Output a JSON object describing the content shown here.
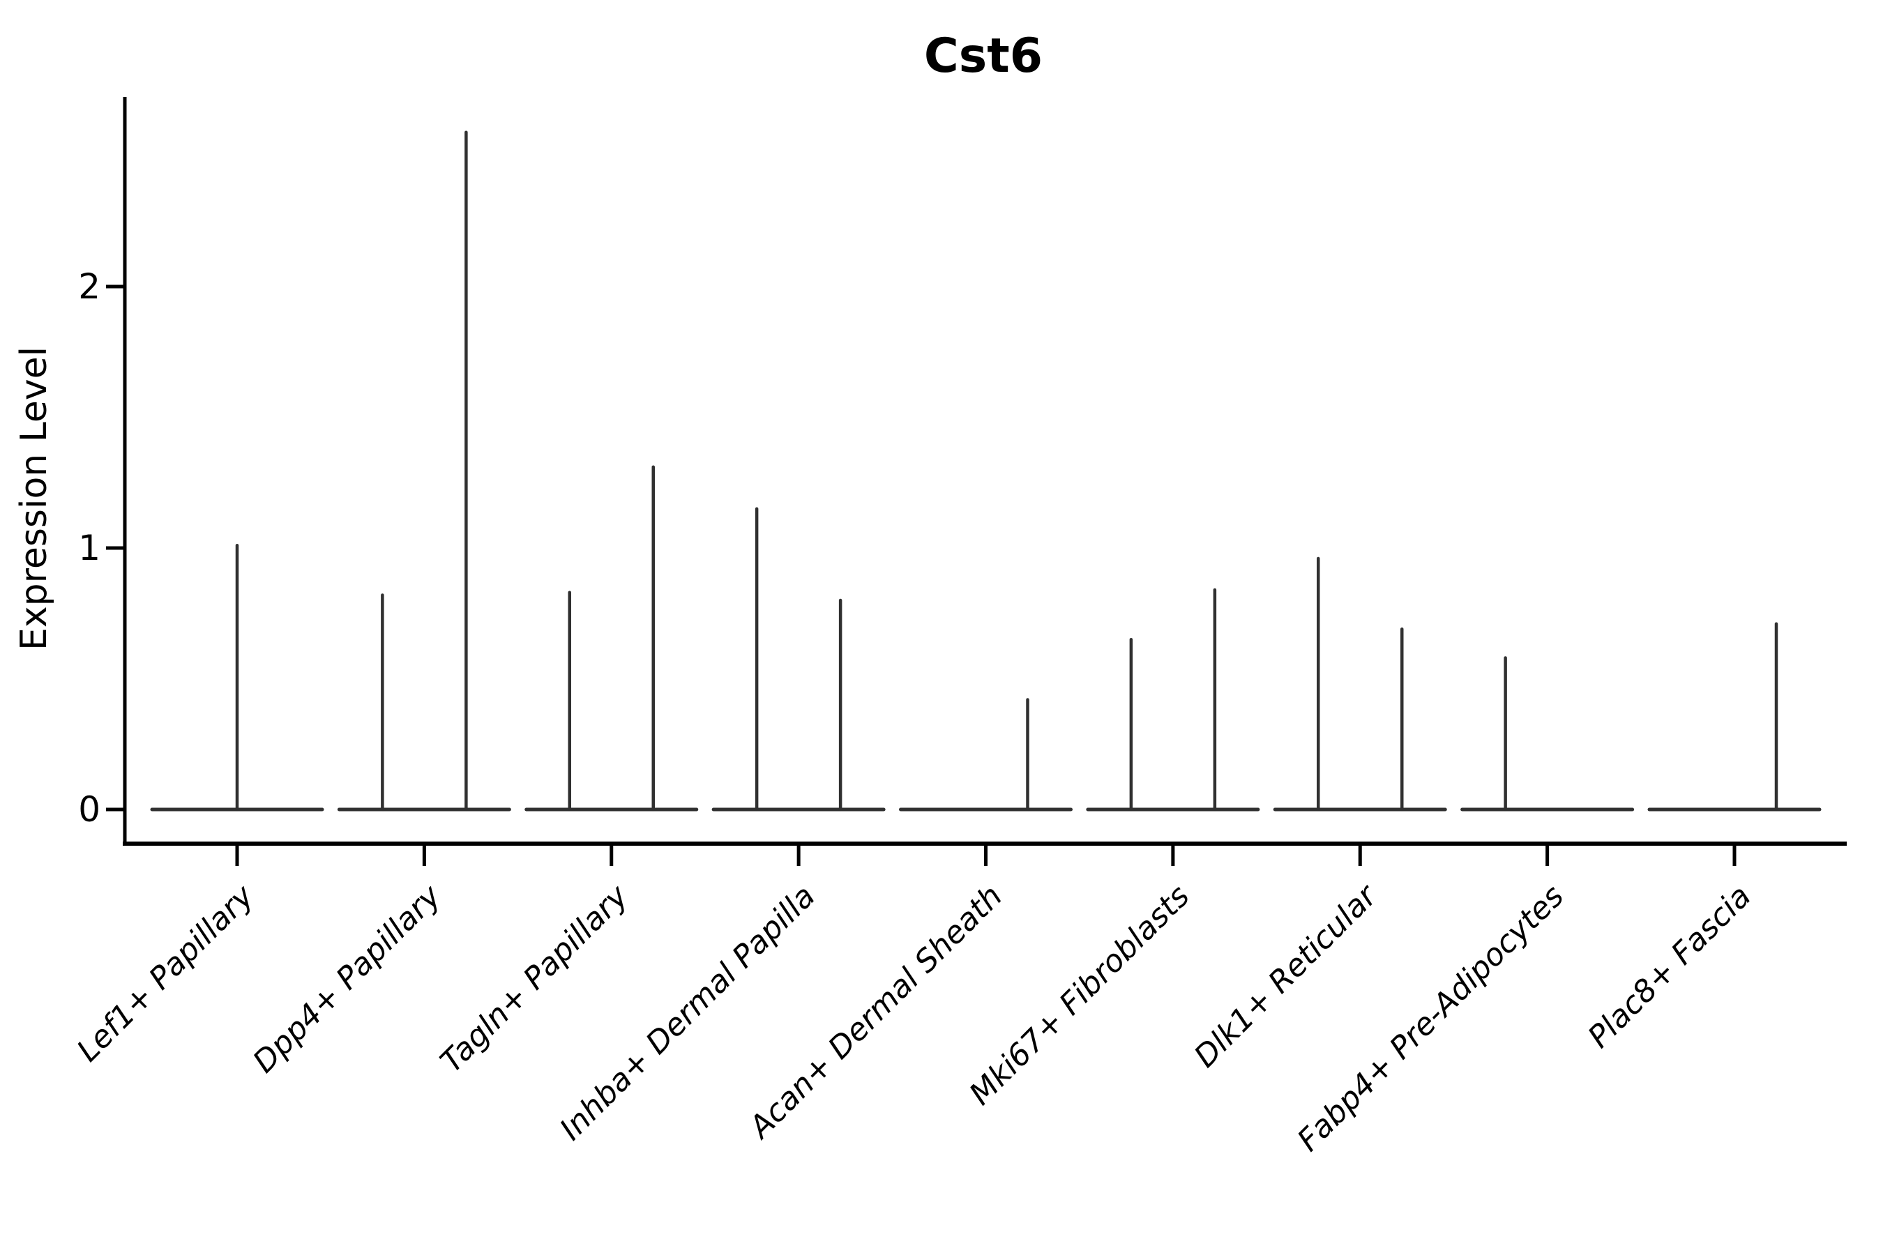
{
  "page": {
    "background": "#ffffff"
  },
  "chart_data": {
    "type": "violin",
    "title": "Cst6",
    "ylabel": "Expression Level",
    "xlabel": "",
    "yticks": [
      "0",
      "1",
      "2"
    ],
    "ylim": [
      -0.13,
      2.73
    ],
    "grid": false,
    "legend": "none",
    "note": "Single-cell expression violin plot. Nearly all density sits at 0 (wide flat base per category); thin vertical tails reach each sub-violin's maximum expression value listed in spikes[].max. 'side' gives the tail position within the category (left/center/right).",
    "categories": [
      "Lef1+ Papillary",
      "Dpp4+ Papillary",
      "Tagln+ Papillary",
      "Inhba+ Dermal Papilla",
      "Acan+ Dermal Sheath",
      "Mki67+ Fibroblasts",
      "Dlk1+ Reticular",
      "Fabp4+ Pre-Adipocytes",
      "Plac8+ Fascia"
    ],
    "violins": [
      {
        "category": "Lef1+ Papillary",
        "zero_base": true,
        "spikes": [
          {
            "side": "center",
            "max": 1.01
          }
        ]
      },
      {
        "category": "Dpp4+ Papillary",
        "zero_base": true,
        "spikes": [
          {
            "side": "left",
            "max": 0.82
          },
          {
            "side": "right",
            "max": 2.59
          }
        ]
      },
      {
        "category": "Tagln+ Papillary",
        "zero_base": true,
        "spikes": [
          {
            "side": "left",
            "max": 0.83
          },
          {
            "side": "right",
            "max": 1.31
          }
        ]
      },
      {
        "category": "Inhba+ Dermal Papilla",
        "zero_base": true,
        "spikes": [
          {
            "side": "left",
            "max": 1.15
          },
          {
            "side": "right",
            "max": 0.8
          }
        ]
      },
      {
        "category": "Acan+ Dermal Sheath",
        "zero_base": true,
        "spikes": [
          {
            "side": "right",
            "max": 0.42
          }
        ]
      },
      {
        "category": "Mki67+ Fibroblasts",
        "zero_base": true,
        "spikes": [
          {
            "side": "left",
            "max": 0.65
          },
          {
            "side": "right",
            "max": 0.84
          }
        ]
      },
      {
        "category": "Dlk1+ Reticular",
        "zero_base": true,
        "spikes": [
          {
            "side": "left",
            "max": 0.96
          },
          {
            "side": "right",
            "max": 0.69
          }
        ]
      },
      {
        "category": "Fabp4+ Pre-Adipocytes",
        "zero_base": true,
        "spikes": [
          {
            "side": "left",
            "max": 0.58
          }
        ]
      },
      {
        "category": "Plac8+ Fascia",
        "zero_base": true,
        "spikes": [
          {
            "side": "right",
            "max": 0.71
          }
        ]
      }
    ],
    "colors": {
      "violin_stroke": "#303030",
      "axis": "#000000",
      "text": "#000000",
      "background": "#ffffff"
    }
  }
}
